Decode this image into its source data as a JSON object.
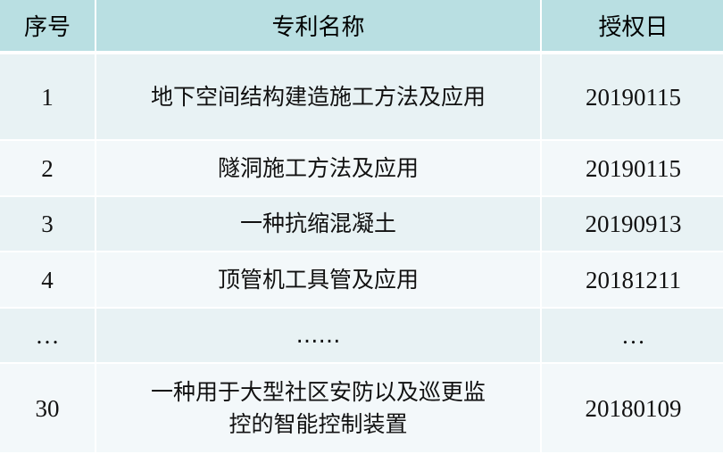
{
  "table": {
    "headers": [
      "序号",
      "专利名称",
      "授权日"
    ],
    "rows": [
      {
        "no": "1",
        "name": "地下空间结构建造施工方法及应用",
        "date": "20190115"
      },
      {
        "no": "2",
        "name": "隧洞施工方法及应用",
        "date": "20190115"
      },
      {
        "no": "3",
        "name": "一种抗缩混凝土",
        "date": "20190913"
      },
      {
        "no": "4",
        "name": "顶管机工具管及应用",
        "date": "20181211"
      },
      {
        "no": "…",
        "name": "……",
        "date": "…"
      },
      {
        "no": "30",
        "name": "一种用于大型社区安防以及巡更监控的智能控制装置",
        "date": "20180109"
      }
    ]
  }
}
